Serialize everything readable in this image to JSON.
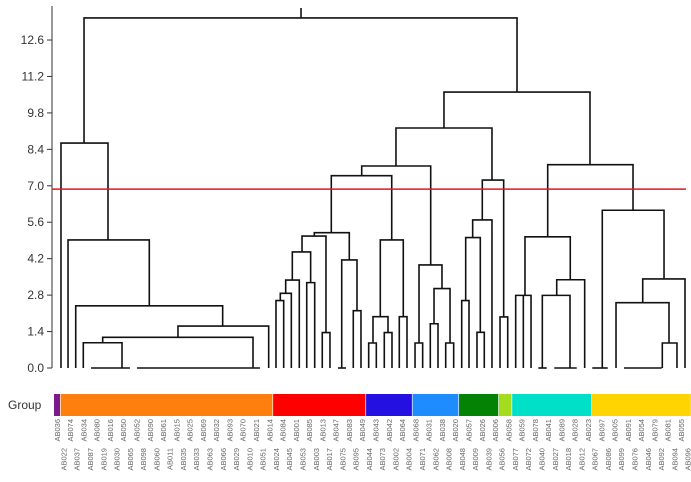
{
  "chart_data": {
    "type": "dendrogram",
    "ylim": [
      0,
      13.83
    ],
    "y_ticks": [
      "0.0",
      "1.4",
      "2.8",
      "4.2",
      "5.6",
      "7.0",
      "8.4",
      "9.8",
      "11.2",
      "12.6"
    ],
    "y_tick_values": [
      0,
      1.4,
      2.8,
      4.2,
      5.6,
      7.0,
      8.4,
      9.8,
      11.2,
      12.6
    ],
    "cutoff": {
      "value": 6.87,
      "color": "#e8141c"
    },
    "root_stem": {
      "x": 36.75,
      "from": 13.45,
      "to": 13.83
    },
    "links_format": "[x_left_leaf, x_right_leaf, left_child_height, right_child_height, merge_height]",
    "links": [
      [
        4.07,
        69.28,
        8.64,
        10.6,
        13.45
      ],
      [
        0.6,
        7.68,
        0,
        4.92,
        8.64
      ],
      [
        1.66,
        13.9,
        0,
        2.39,
        4.92
      ],
      [
        2.82,
        24.95,
        0,
        1.61,
        2.39
      ],
      [
        18.22,
        31.88,
        1.18,
        0,
        1.61
      ],
      [
        6.88,
        29.52,
        0.97,
        0,
        1.18
      ],
      [
        3.96,
        9.79,
        0,
        0,
        0.97
      ],
      [
        58.28,
        80.27,
        9.22,
        7.81,
        10.6
      ],
      [
        51.05,
        65.51,
        7.76,
        7.22,
        9.22
      ],
      [
        45.89,
        56.28,
        7.39,
        3.96,
        7.76
      ],
      [
        41.31,
        50.41,
        5.2,
        4.92,
        7.39
      ],
      [
        38.75,
        44.02,
        5.07,
        4.15,
        5.2
      ],
      [
        36.9,
        40.51,
        4.46,
        1.36,
        5.07
      ],
      [
        35.44,
        38.2,
        3.38,
        3.28,
        4.46
      ],
      [
        34.44,
        36.49,
        2.87,
        0,
        3.38
      ],
      [
        33.63,
        35.29,
        2.59,
        0,
        2.87
      ],
      [
        32.98,
        34.14,
        0,
        0,
        2.59
      ],
      [
        37.61,
        38.81,
        0,
        0,
        3.28
      ],
      [
        39.95,
        41.11,
        0,
        0,
        1.36
      ],
      [
        42.88,
        45.18,
        0,
        2.2,
        4.15
      ],
      [
        44.62,
        45.78,
        0,
        0,
        2.2
      ],
      [
        48.69,
        52.15,
        1.97,
        1.97,
        4.92
      ],
      [
        47.59,
        49.85,
        0.96,
        1.36,
        1.97
      ],
      [
        46.94,
        48.09,
        0,
        0,
        0.96
      ],
      [
        49.29,
        50.45,
        0,
        0,
        1.36
      ],
      [
        51.55,
        52.71,
        0,
        0,
        1.97
      ],
      [
        54.52,
        57.98,
        0.96,
        3.05,
        3.96
      ],
      [
        53.92,
        55.07,
        0,
        0,
        0.96
      ],
      [
        56.78,
        59.19,
        1.7,
        0.96,
        3.05
      ],
      [
        56.22,
        57.38,
        0,
        0,
        1.7
      ],
      [
        58.54,
        59.74,
        0,
        0,
        0.96
      ],
      [
        64.05,
        67.27,
        5.69,
        1.96,
        7.22
      ],
      [
        62.6,
        65.51,
        5.01,
        0,
        5.69
      ],
      [
        61.55,
        63.75,
        2.59,
        1.37,
        5.01
      ],
      [
        60.95,
        62.05,
        0,
        0,
        2.59
      ],
      [
        63.25,
        64.35,
        0,
        0,
        1.37
      ],
      [
        66.72,
        67.88,
        0,
        0,
        1.96
      ],
      [
        73.9,
        86.75,
        5.04,
        6.06,
        7.81
      ],
      [
        70.48,
        77.3,
        2.79,
        3.39,
        5.04
      ],
      [
        69.08,
        71.39,
        0,
        0,
        2.79
      ],
      [
        70.23,
        70.23,
        0,
        0,
        2.79
      ],
      [
        75.26,
        79.47,
        2.79,
        0,
        3.39
      ],
      [
        73.09,
        77.26,
        0,
        0,
        2.79
      ],
      [
        82.12,
        91.42,
        0,
        3.42,
        6.06
      ],
      [
        88.21,
        94.58,
        2.51,
        0,
        3.42
      ],
      [
        84.19,
        92.17,
        0,
        0.96,
        2.51
      ],
      [
        91.16,
        93.37,
        0,
        0,
        0.96
      ]
    ],
    "zero_height_merges": [
      [
        5.12,
        10.99
      ],
      [
        12.05,
        30.57
      ],
      [
        42.32,
        43.52
      ],
      [
        72.49,
        73.75
      ],
      [
        74.89,
        78.27
      ],
      [
        80.62,
        82.94
      ],
      [
        85.39,
        91.07
      ]
    ],
    "group_label": "Group",
    "groups": [
      {
        "start": 0,
        "end": 0,
        "color": "#7b1a8c"
      },
      {
        "start": 1,
        "end": 32,
        "color": "#ff7f0e"
      },
      {
        "start": 33,
        "end": 46,
        "color": "#ff0000"
      },
      {
        "start": 47,
        "end": 53,
        "color": "#2410e0"
      },
      {
        "start": 54,
        "end": 60,
        "color": "#1e8cff"
      },
      {
        "start": 61,
        "end": 66,
        "color": "#048204"
      },
      {
        "start": 67,
        "end": 68,
        "color": "#a6dc1e"
      },
      {
        "start": 69,
        "end": 80,
        "color": "#00e0c8"
      },
      {
        "start": 81,
        "end": 95,
        "color": "#ffd400"
      }
    ],
    "leaves": [
      "AB036",
      "AB022",
      "AB074",
      "AB037",
      "AB034",
      "AB087",
      "AB080",
      "AB019",
      "AB016",
      "AB030",
      "AB050",
      "AB065",
      "AB052",
      "AB098",
      "AB090",
      "AB060",
      "AB061",
      "AB011",
      "AB015",
      "AB035",
      "AB025",
      "AB033",
      "AB069",
      "AB063",
      "AB032",
      "AB066",
      "AB093",
      "AB029",
      "AB070",
      "AB010",
      "AB021",
      "AB051",
      "AB014",
      "AB024",
      "AB084",
      "AB045",
      "AB001",
      "AB053",
      "AB085",
      "AB003",
      "AB013",
      "AB017",
      "AB047",
      "AB075",
      "AB083",
      "AB095",
      "AB049",
      "AB044",
      "AB043",
      "AB073",
      "AB042",
      "AB002",
      "AB064",
      "AB004",
      "AB068",
      "AB071",
      "AB031",
      "AB062",
      "AB038",
      "AB008",
      "AB020",
      "AB048",
      "AB057",
      "AB009",
      "AB026",
      "AB039",
      "AB006",
      "AB056",
      "AB058",
      "AB077",
      "AB059",
      "AB072",
      "AB078",
      "AB040",
      "AB041",
      "AB027",
      "AB089",
      "AB018",
      "AB028",
      "AB012",
      "AB023",
      "AB067",
      "AB097",
      "AB086",
      "AB005",
      "AB099",
      "AB091",
      "AB076",
      "AB054",
      "AB046",
      "AB079",
      "AB092",
      "AB081",
      "AB094",
      "AB055",
      "AB096"
    ]
  }
}
